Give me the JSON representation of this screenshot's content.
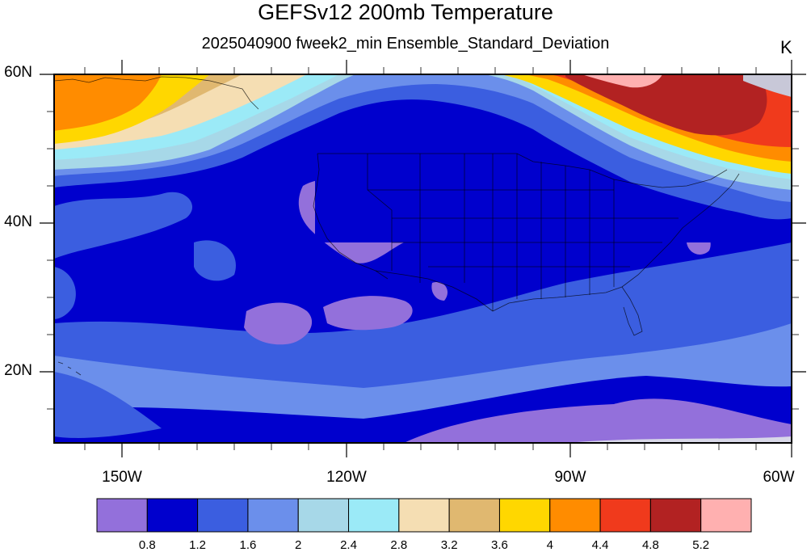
{
  "title": "GEFSv12 200mb Temperature",
  "subtitle": "2025040900 fweek2_min Ensemble_Standard_Deviation",
  "units": "K",
  "map": {
    "lat_labels": [
      "60N",
      "40N",
      "20N"
    ],
    "lon_labels": [
      "150W",
      "120W",
      "90W",
      "60W"
    ],
    "lat_range": [
      10,
      60
    ],
    "lon_range": [
      -159,
      -60
    ],
    "colors": {
      "lavender": "#9370DB",
      "dark_blue": "#0000CD",
      "royal_blue": "#3B5EE0",
      "cornflower": "#6B8FEB",
      "light_blue": "#A7D8E8",
      "pale_cyan": "#9BEAF7",
      "wheat": "#F5DEB3",
      "tan": "#E0B870",
      "gold": "#FFD700",
      "orange": "#FF8C00",
      "red_orange": "#F03A1C",
      "brown": "#B22222",
      "pink": "#FFB0B0"
    }
  },
  "colorbar": {
    "levels": [
      "0.8",
      "1.2",
      "1.6",
      "2",
      "2.4",
      "2.8",
      "3.2",
      "3.6",
      "4",
      "4.4",
      "4.8",
      "5.2"
    ],
    "colors": [
      "#9370DB",
      "#0000CD",
      "#3B5EE0",
      "#6B8FEB",
      "#A7D8E8",
      "#9BEAF7",
      "#F5DEB3",
      "#E0B870",
      "#FFD700",
      "#FF8C00",
      "#F03A1C",
      "#B22222",
      "#FFB0B0"
    ]
  }
}
